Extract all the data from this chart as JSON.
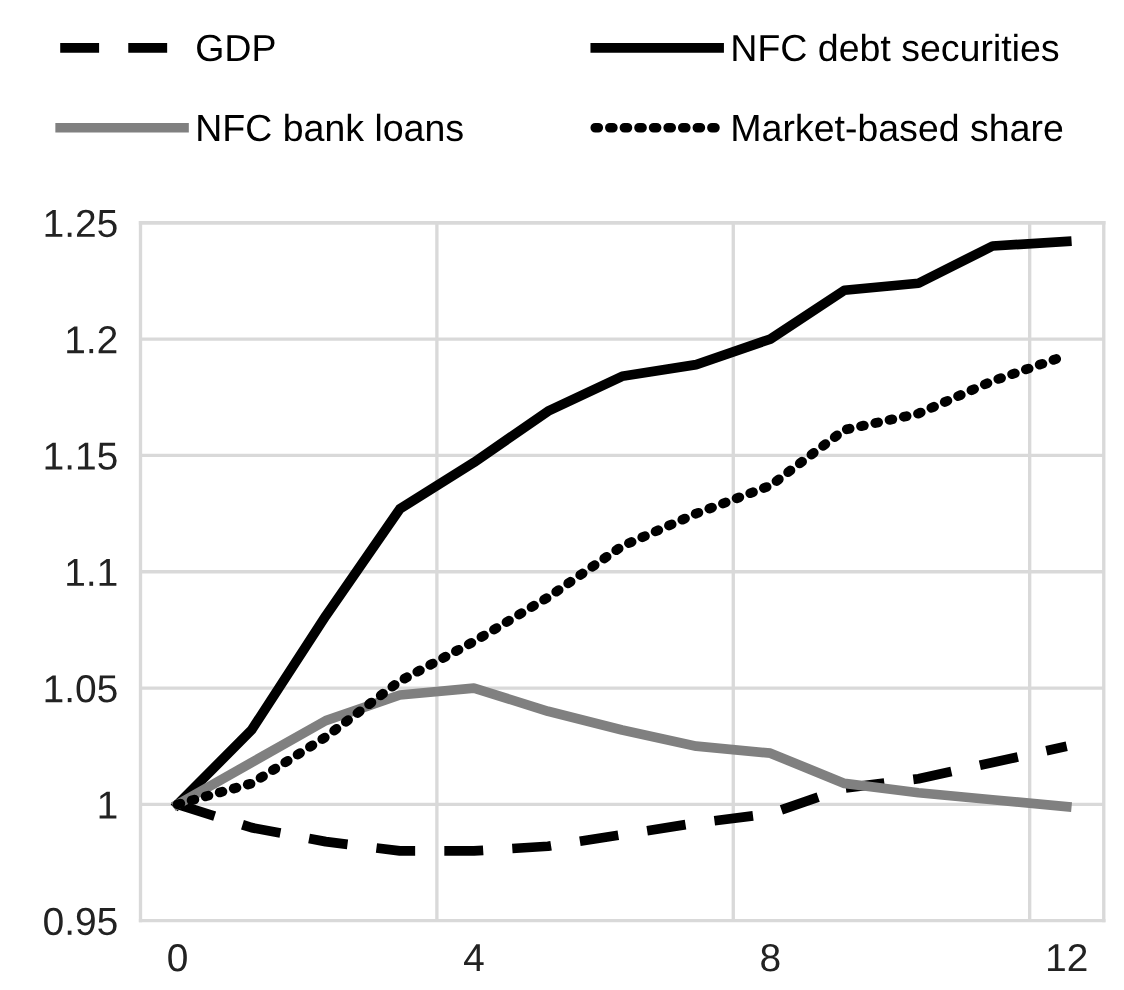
{
  "chart_data": {
    "type": "line",
    "categories": [
      "0",
      null,
      null,
      null,
      "4",
      null,
      null,
      null,
      "8",
      null,
      null,
      null,
      "12"
    ],
    "ylim": [
      0.95,
      1.25
    ],
    "yticks": [
      0.95,
      1,
      1.05,
      1.1,
      1.15,
      1.2,
      1.25
    ],
    "grid": true,
    "legend": "top",
    "marker": "none",
    "series": [
      {
        "name": "GDP",
        "color": "#000000",
        "line_style": "dashed",
        "values": [
          1.0,
          0.99,
          0.984,
          0.98,
          0.98,
          0.982,
          0.987,
          0.992,
          0.996,
          1.007,
          1.011,
          1.018,
          1.025
        ]
      },
      {
        "name": "NFC debt securities",
        "color": "#000000",
        "line_style": "solid",
        "values": [
          1.0,
          1.032,
          1.081,
          1.127,
          1.147,
          1.169,
          1.184,
          1.189,
          1.2,
          1.221,
          1.224,
          1.24,
          1.242
        ]
      },
      {
        "name": "NFC bank loans",
        "color": "#808080",
        "line_style": "solid",
        "values": [
          1.0,
          1.018,
          1.036,
          1.047,
          1.05,
          1.04,
          1.032,
          1.025,
          1.022,
          1.009,
          1.005,
          1.002,
          0.999
        ]
      },
      {
        "name": "Market-based share",
        "color": "#000000",
        "line_style": "dotted",
        "values": [
          1.0,
          1.009,
          1.029,
          1.053,
          1.07,
          1.089,
          1.111,
          1.125,
          1.137,
          1.161,
          1.168,
          1.182,
          1.193
        ]
      }
    ]
  }
}
